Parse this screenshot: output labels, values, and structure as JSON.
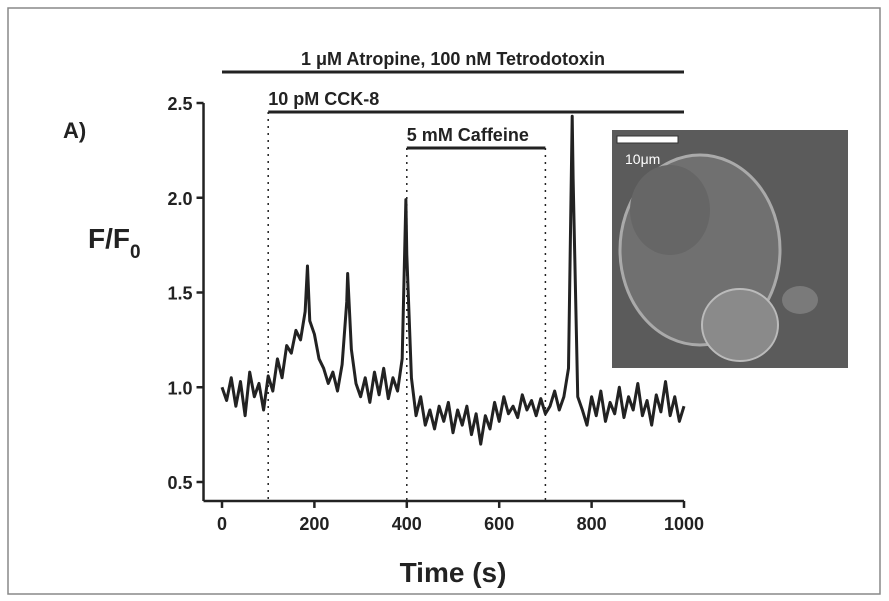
{
  "chart_data": {
    "type": "line",
    "panel_label": "A)",
    "xlabel": "Time (s)",
    "ylabel": "F/F",
    "ylabel_subscript": "0",
    "xlim": [
      -40,
      1000
    ],
    "ylim": [
      0.4,
      2.5
    ],
    "xticks": [
      0,
      200,
      400,
      600,
      800,
      1000
    ],
    "yticks": [
      0.5,
      {
        "value": 1,
        "label": "1.0"
      },
      1.5,
      {
        "value": 2,
        "label": "2.0"
      },
      2.5
    ],
    "annotations": [
      {
        "text": "1 μM Atropine, 100 nM Tetrodotoxin",
        "start": 0,
        "end": 1000
      },
      {
        "text": "10 pM CCK-8",
        "start": 100,
        "end": 1000
      },
      {
        "text": "5 mM Caffeine",
        "start": 400,
        "end": 700
      }
    ],
    "inset_scale_label": "10μm",
    "series": [
      {
        "color": "#222222",
        "x": [
          0,
          10,
          20,
          30,
          40,
          50,
          60,
          70,
          80,
          90,
          100,
          110,
          120,
          130,
          140,
          150,
          160,
          170,
          180,
          185,
          190,
          200,
          210,
          220,
          230,
          240,
          250,
          260,
          270,
          272,
          280,
          290,
          300,
          310,
          320,
          330,
          340,
          350,
          360,
          370,
          380,
          390,
          398,
          400,
          410,
          420,
          430,
          440,
          450,
          460,
          470,
          480,
          490,
          500,
          510,
          520,
          530,
          540,
          550,
          560,
          570,
          580,
          590,
          600,
          610,
          620,
          630,
          640,
          650,
          660,
          670,
          680,
          690,
          700,
          710,
          720,
          730,
          740,
          750,
          758,
          760,
          770,
          780,
          790,
          800,
          810,
          820,
          830,
          840,
          850,
          860,
          870,
          880,
          890,
          900,
          910,
          920,
          930,
          940,
          950,
          960,
          970,
          980,
          990,
          1000
        ],
        "values": [
          1.0,
          0.93,
          1.05,
          0.9,
          1.03,
          0.85,
          1.08,
          0.95,
          1.02,
          0.88,
          1.06,
          0.98,
          1.15,
          1.05,
          1.22,
          1.18,
          1.3,
          1.25,
          1.4,
          1.64,
          1.35,
          1.28,
          1.15,
          1.1,
          1.02,
          1.08,
          0.98,
          1.12,
          1.45,
          1.6,
          1.2,
          1.02,
          0.95,
          1.05,
          0.92,
          1.08,
          0.96,
          1.1,
          0.94,
          1.05,
          0.98,
          1.15,
          1.99,
          1.7,
          1.05,
          0.85,
          0.95,
          0.8,
          0.88,
          0.78,
          0.9,
          0.82,
          0.92,
          0.76,
          0.88,
          0.8,
          0.9,
          0.75,
          0.86,
          0.7,
          0.85,
          0.78,
          0.92,
          0.82,
          0.95,
          0.86,
          0.9,
          0.84,
          0.96,
          0.88,
          0.93,
          0.85,
          0.94,
          0.86,
          0.9,
          0.98,
          0.88,
          0.95,
          1.1,
          2.43,
          2.1,
          0.95,
          0.88,
          0.8,
          0.95,
          0.85,
          0.98,
          0.82,
          0.92,
          0.86,
          1.0,
          0.84,
          0.95,
          0.88,
          1.02,
          0.85,
          0.93,
          0.8,
          0.96,
          0.87,
          1.03,
          0.85,
          0.95,
          0.82,
          0.9
        ]
      }
    ]
  }
}
